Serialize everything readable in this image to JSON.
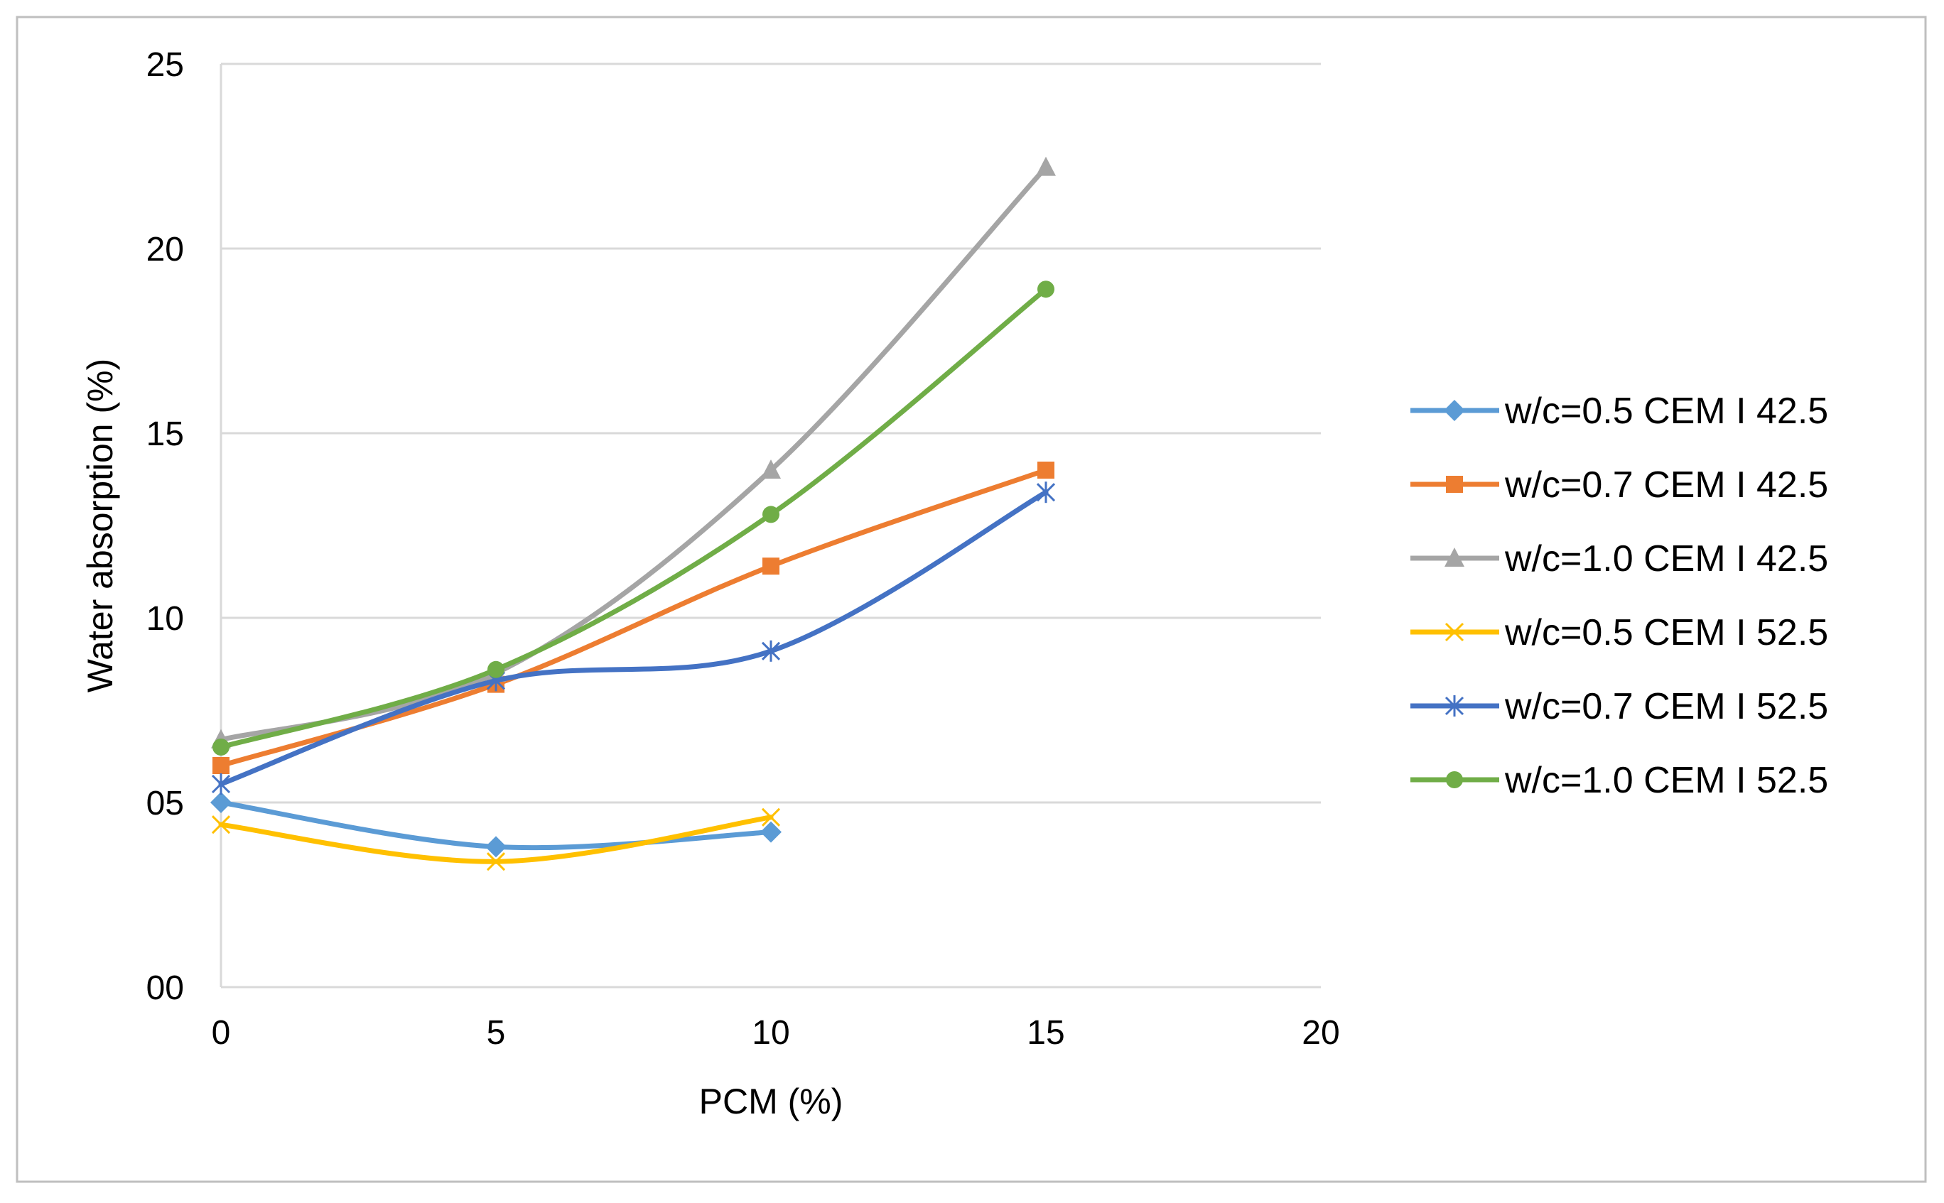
{
  "chart_data": {
    "type": "line",
    "title": "",
    "xlabel": "PCM (%)",
    "ylabel": "Water absorption (%)",
    "xlim": [
      0,
      20
    ],
    "ylim": [
      0,
      25
    ],
    "grid": true,
    "legend_position": "right",
    "x_ticks": [
      0,
      5,
      10,
      15,
      20
    ],
    "x_tick_labels": [
      "0",
      "5",
      "10",
      "15",
      "20"
    ],
    "y_ticks": [
      0,
      5,
      10,
      15,
      20,
      25
    ],
    "y_tick_labels": [
      "00",
      "05",
      "10",
      "15",
      "20",
      "25"
    ],
    "series": [
      {
        "name": "w/c=0.5 CEM I 42.5",
        "color": "#5B9BD5",
        "marker": "diamond",
        "x": [
          0,
          5,
          10
        ],
        "values": [
          5.0,
          3.8,
          4.2
        ]
      },
      {
        "name": "w/c=0.7 CEM I 42.5",
        "color": "#ED7D31",
        "marker": "square",
        "x": [
          0,
          5,
          10,
          15
        ],
        "values": [
          6.0,
          8.2,
          11.4,
          14.0
        ]
      },
      {
        "name": "w/c=1.0 CEM I 42.5",
        "color": "#A5A5A5",
        "marker": "triangle",
        "x": [
          0,
          5,
          10,
          15
        ],
        "values": [
          6.7,
          8.5,
          14.0,
          22.2
        ]
      },
      {
        "name": "w/c=0.5 CEM I 52.5",
        "color": "#FFC000",
        "marker": "x",
        "x": [
          0,
          5,
          10
        ],
        "values": [
          4.4,
          3.4,
          4.6
        ]
      },
      {
        "name": "w/c=0.7 CEM I 52.5",
        "color": "#4472C4",
        "marker": "asterisk",
        "x": [
          0,
          5,
          10,
          15
        ],
        "values": [
          5.5,
          8.3,
          9.1,
          13.4
        ]
      },
      {
        "name": "w/c=1.0 CEM I 52.5",
        "color": "#70AD47",
        "marker": "circle",
        "x": [
          0,
          5,
          10,
          15
        ],
        "values": [
          6.5,
          8.6,
          12.8,
          18.9
        ]
      }
    ]
  }
}
